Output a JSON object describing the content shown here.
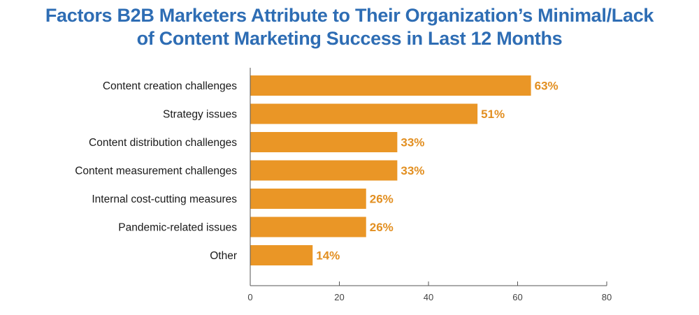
{
  "chart_data": {
    "type": "bar",
    "orientation": "horizontal",
    "title_line1": "Factors B2B Marketers Attribute to Their Organization’s Minimal/Lack",
    "title_line2": "of Content Marketing Success in Last 12 Months",
    "categories": [
      "Content creation challenges",
      "Strategy issues",
      "Content distribution challenges",
      "Content measurement challenges",
      "Internal cost-cutting measures",
      "Pandemic-related issues",
      "Other"
    ],
    "values": [
      63,
      51,
      33,
      33,
      26,
      26,
      14
    ],
    "value_labels": [
      "63%",
      "51%",
      "33%",
      "33%",
      "26%",
      "26%",
      "14%"
    ],
    "xlim": [
      0,
      80
    ],
    "xticks": [
      0,
      20,
      40,
      60,
      80
    ],
    "xtick_labels": [
      "0",
      "20",
      "40",
      "60",
      "80"
    ],
    "grid": false,
    "legend": "none",
    "colors": {
      "bar": "#EA9626",
      "value_label": "#E28F21",
      "title": "#2E6DB4",
      "axis": "#555555"
    }
  }
}
